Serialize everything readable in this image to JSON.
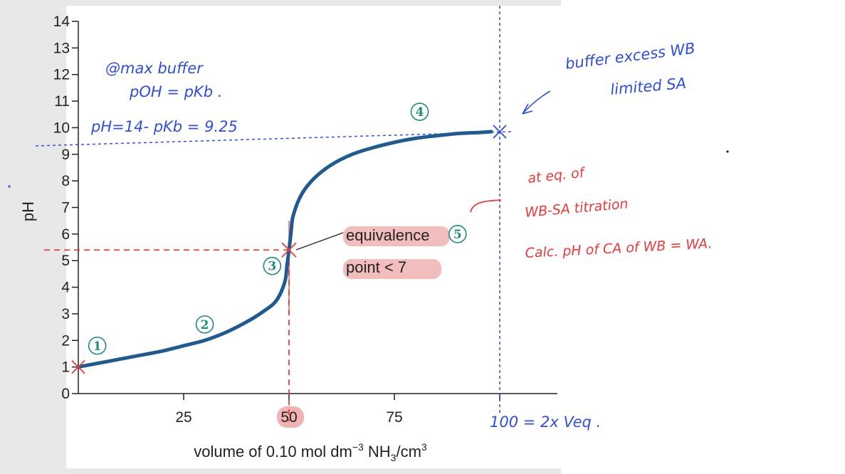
{
  "chart_data": {
    "type": "line",
    "title": "",
    "xlabel": "volume of 0.10 mol dm",
    "xlabel_sup": "−3",
    "xlabel_tail": " NH",
    "xlabel_sub": "3",
    "xlabel_unit": "/cm",
    "xlabel_unit_sup": "3",
    "ylabel": "pH",
    "xlim": [
      0,
      115
    ],
    "ylim": [
      0,
      14
    ],
    "xticks": [
      "25",
      "50",
      "75"
    ],
    "yticks": [
      "0",
      "1",
      "2",
      "3",
      "4",
      "5",
      "6",
      "7",
      "8",
      "9",
      "10",
      "11",
      "12",
      "13",
      "14"
    ],
    "series": [
      {
        "x": [
          0,
          5,
          10,
          15,
          20,
          25,
          30,
          35,
          40,
          44,
          47,
          49,
          49.5,
          50,
          50.5,
          51,
          53,
          56,
          60,
          65,
          70,
          75,
          80,
          85,
          90,
          95,
          98
        ],
        "y": [
          1.0,
          1.15,
          1.3,
          1.45,
          1.6,
          1.8,
          2.0,
          2.3,
          2.7,
          3.1,
          3.5,
          4.2,
          4.8,
          5.4,
          6.1,
          6.7,
          7.5,
          8.1,
          8.6,
          9.0,
          9.25,
          9.45,
          9.6,
          9.7,
          9.78,
          9.82,
          9.85
        ]
      }
    ],
    "annotations": {
      "equivalence_line1": "equivalence",
      "equivalence_line2": "point < 7",
      "stage_markers": [
        {
          "label": "①",
          "x": 4.5,
          "y": 1.8
        },
        {
          "label": "②",
          "x": 30,
          "y": 2.6
        },
        {
          "label": "③",
          "x": 46,
          "y": 4.8
        },
        {
          "label": "④",
          "x": 81,
          "y": 10.6
        },
        {
          "label": "⑤",
          "x": 90,
          "y": 6.0
        }
      ]
    },
    "handwritten": {
      "blue_note_1": "@max buffer",
      "blue_note_2": "pOH = pKb .",
      "blue_note_3": "pH=14- pKb = 9.25",
      "blue_note_4": "buffer excess WB",
      "blue_note_5": "limited SA",
      "blue_note_6": "100 = 2x Veq .",
      "red_note_1": "at eq. of",
      "red_note_2": "WB-SA titration",
      "red_note_3": "Calc. pH of CA of WB = WA."
    },
    "grid": false,
    "legend": "none",
    "colors": {
      "curve": "#1f5a93",
      "accent_red": "#ea3a3a",
      "accent_blue": "#2f4fe0",
      "marker_green": "#1f8a83",
      "highlight": "#f0b2b2"
    }
  }
}
